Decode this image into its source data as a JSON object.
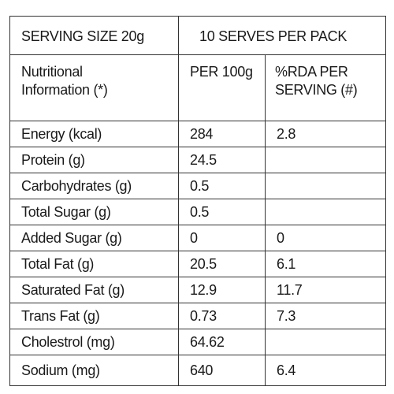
{
  "header": {
    "serving_size": "SERVING SIZE  20g",
    "serves": "10 SERVES PER PACK"
  },
  "columns": {
    "nutrient": "Nutritional\nInformation (*)",
    "per100g": "PER 100g",
    "rda": "%RDA PER\nSERVING (#)"
  },
  "rows": [
    {
      "nutrient": "Energy (kcal)",
      "per100g": 284,
      "rda": 2.8
    },
    {
      "nutrient": "Protein (g)",
      "per100g": 24.5
    },
    {
      "nutrient": "Carbohydrates (g)",
      "per100g": 0.5
    },
    {
      "nutrient": "Total Sugar (g)",
      "per100g": 0.5
    },
    {
      "nutrient": "Added Sugar (g)",
      "per100g": 0,
      "rda": 0
    },
    {
      "nutrient": "Total Fat (g)",
      "per100g": 20.5,
      "rda": 6.1
    },
    {
      "nutrient": "Saturated Fat (g)",
      "per100g": 12.9,
      "rda": 11.7
    },
    {
      "nutrient": "Trans Fat (g)",
      "per100g": 0.73,
      "rda": 7.3
    },
    {
      "nutrient": "Cholestrol (mg)",
      "per100g": 64.62
    },
    {
      "nutrient": "Sodium (mg)",
      "per100g": 640,
      "rda": 6.4
    }
  ]
}
